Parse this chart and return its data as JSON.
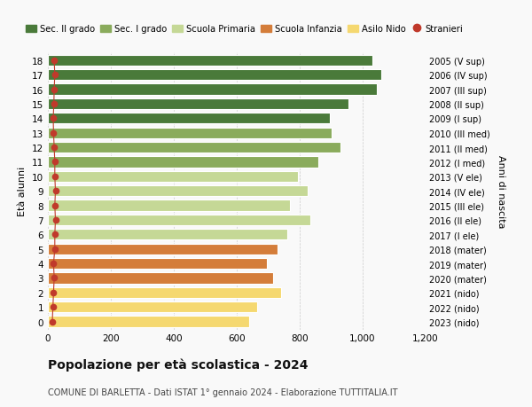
{
  "ages": [
    0,
    1,
    2,
    3,
    4,
    5,
    6,
    7,
    8,
    9,
    10,
    11,
    12,
    13,
    14,
    15,
    16,
    17,
    18
  ],
  "values": [
    640,
    665,
    740,
    715,
    695,
    730,
    760,
    835,
    770,
    825,
    795,
    860,
    930,
    900,
    895,
    955,
    1045,
    1060,
    1030
  ],
  "stranieri": [
    14,
    16,
    18,
    20,
    18,
    22,
    22,
    24,
    22,
    24,
    22,
    22,
    20,
    18,
    17,
    19,
    20,
    22,
    20
  ],
  "right_labels": [
    "2023 (nido)",
    "2022 (nido)",
    "2021 (nido)",
    "2020 (mater)",
    "2019 (mater)",
    "2018 (mater)",
    "2017 (I ele)",
    "2016 (II ele)",
    "2015 (III ele)",
    "2014 (IV ele)",
    "2013 (V ele)",
    "2012 (I med)",
    "2011 (II med)",
    "2010 (III med)",
    "2009 (I sup)",
    "2008 (II sup)",
    "2007 (III sup)",
    "2006 (IV sup)",
    "2005 (V sup)"
  ],
  "bar_colors": [
    "#f5d870",
    "#f5d870",
    "#f5d870",
    "#d47d3a",
    "#d47d3a",
    "#d47d3a",
    "#c5d896",
    "#c5d896",
    "#c5d896",
    "#c5d896",
    "#c5d896",
    "#8aab5c",
    "#8aab5c",
    "#8aab5c",
    "#4a7a3a",
    "#4a7a3a",
    "#4a7a3a",
    "#4a7a3a",
    "#4a7a3a"
  ],
  "legend_labels": [
    "Sec. II grado",
    "Sec. I grado",
    "Scuola Primaria",
    "Scuola Infanzia",
    "Asilo Nido",
    "Stranieri"
  ],
  "legend_colors": [
    "#4a7a3a",
    "#8aab5c",
    "#c5d896",
    "#d47d3a",
    "#f5d870",
    "#c0392b"
  ],
  "title": "Popolazione per età scolastica - 2024",
  "subtitle": "COMUNE DI BARLETTA - Dati ISTAT 1° gennaio 2024 - Elaborazione TUTTITALIA.IT",
  "ylabel": "Età alunni",
  "right_axis_label": "Anni di nascita",
  "xlim": [
    0,
    1200
  ],
  "xticks": [
    0,
    200,
    400,
    600,
    800,
    1000,
    1200
  ],
  "xtick_labels": [
    "0",
    "200",
    "400",
    "600",
    "800",
    "1,000",
    "1,200"
  ],
  "bg_color": "#f9f9f9",
  "stranieri_color": "#c0392b",
  "bar_height": 0.75
}
